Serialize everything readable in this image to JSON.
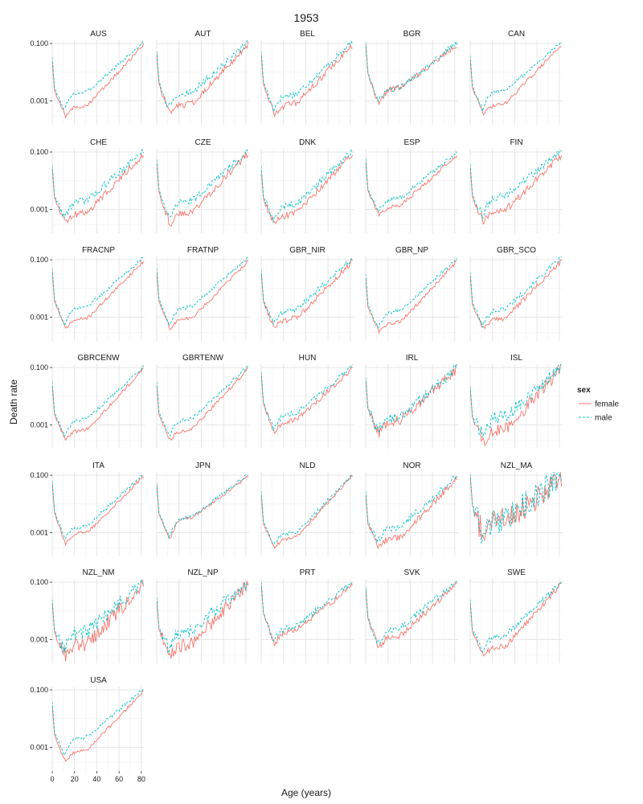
{
  "chart_data": {
    "type": "line",
    "title": "1953",
    "xlabel": "Age (years)",
    "ylabel": "Death rate",
    "y_scale": "log10",
    "xlim": [
      0,
      83
    ],
    "ylim": [
      0.00015,
      0.13
    ],
    "x_ticks": [
      0,
      20,
      40,
      60,
      80
    ],
    "y_ticks": [
      0.001,
      0.1
    ],
    "y_tick_labels": [
      "0.001",
      "0.100"
    ],
    "grid": true,
    "legend": {
      "title": "sex",
      "placement": "right",
      "entries": [
        {
          "label": "female",
          "color": "#F8766D",
          "dash": "solid"
        },
        {
          "label": "male",
          "color": "#00BFC4",
          "dash": "dashed"
        }
      ]
    },
    "series_names": [
      "female",
      "male"
    ],
    "panels": [
      {
        "label": "AUS",
        "female": {
          "d0": 0.025,
          "dmin": 0.0003,
          "amin": 12,
          "h20": 0.0006,
          "d82": 0.09
        },
        "male": {
          "d0": 0.033,
          "dmin": 0.0005,
          "amin": 10,
          "h20": 0.0018,
          "d82": 0.11
        }
      },
      {
        "label": "AUT",
        "female": {
          "d0": 0.045,
          "dmin": 0.0004,
          "amin": 11,
          "h20": 0.0007,
          "d82": 0.09
        },
        "male": {
          "d0": 0.055,
          "dmin": 0.0006,
          "amin": 10,
          "h20": 0.0017,
          "d82": 0.11
        }
      },
      {
        "label": "BEL",
        "female": {
          "d0": 0.042,
          "dmin": 0.00035,
          "amin": 12,
          "h20": 0.0007,
          "d82": 0.09
        },
        "male": {
          "d0": 0.052,
          "dmin": 0.0005,
          "amin": 11,
          "h20": 0.0015,
          "d82": 0.11
        }
      },
      {
        "label": "BGR",
        "female": {
          "d0": 0.1,
          "dmin": 0.0007,
          "amin": 12,
          "h20": 0.0025,
          "d82": 0.09
        },
        "male": {
          "d0": 0.11,
          "dmin": 0.0009,
          "amin": 11,
          "h20": 0.0025,
          "d82": 0.11
        }
      },
      {
        "label": "CAN",
        "female": {
          "d0": 0.03,
          "dmin": 0.00035,
          "amin": 12,
          "h20": 0.0007,
          "d82": 0.09
        },
        "male": {
          "d0": 0.038,
          "dmin": 0.0005,
          "amin": 11,
          "h20": 0.002,
          "d82": 0.11
        }
      },
      {
        "label": "CHE",
        "female": {
          "d0": 0.028,
          "dmin": 0.00035,
          "amin": 12,
          "h20": 0.0007,
          "d82": 0.09
        },
        "male": {
          "d0": 0.035,
          "dmin": 0.0005,
          "amin": 11,
          "h20": 0.0018,
          "d82": 0.11
        }
      },
      {
        "label": "CZE",
        "female": {
          "d0": 0.045,
          "dmin": 0.0003,
          "amin": 12,
          "h20": 0.0007,
          "d82": 0.09
        },
        "male": {
          "d0": 0.055,
          "dmin": 0.0005,
          "amin": 11,
          "h20": 0.0017,
          "d82": 0.11
        }
      },
      {
        "label": "DNK",
        "female": {
          "d0": 0.025,
          "dmin": 0.0003,
          "amin": 12,
          "h20": 0.0006,
          "d82": 0.09
        },
        "male": {
          "d0": 0.032,
          "dmin": 0.0004,
          "amin": 11,
          "h20": 0.0013,
          "d82": 0.11
        }
      },
      {
        "label": "ESP",
        "female": {
          "d0": 0.05,
          "dmin": 0.0006,
          "amin": 12,
          "h20": 0.0012,
          "d82": 0.08
        },
        "male": {
          "d0": 0.06,
          "dmin": 0.0008,
          "amin": 11,
          "h20": 0.0022,
          "d82": 0.1
        }
      },
      {
        "label": "FIN",
        "female": {
          "d0": 0.03,
          "dmin": 0.0004,
          "amin": 12,
          "h20": 0.0008,
          "d82": 0.08
        },
        "male": {
          "d0": 0.038,
          "dmin": 0.0006,
          "amin": 11,
          "h20": 0.0025,
          "d82": 0.11
        }
      },
      {
        "label": "FRACNP",
        "female": {
          "d0": 0.04,
          "dmin": 0.0004,
          "amin": 12,
          "h20": 0.0008,
          "d82": 0.09
        },
        "male": {
          "d0": 0.05,
          "dmin": 0.0005,
          "amin": 11,
          "h20": 0.002,
          "d82": 0.12
        }
      },
      {
        "label": "FRATNP",
        "female": {
          "d0": 0.04,
          "dmin": 0.0004,
          "amin": 12,
          "h20": 0.0008,
          "d82": 0.09
        },
        "male": {
          "d0": 0.05,
          "dmin": 0.0005,
          "amin": 11,
          "h20": 0.002,
          "d82": 0.12
        }
      },
      {
        "label": "GBR_NIR",
        "female": {
          "d0": 0.038,
          "dmin": 0.0004,
          "amin": 12,
          "h20": 0.0008,
          "d82": 0.09
        },
        "male": {
          "d0": 0.045,
          "dmin": 0.0006,
          "amin": 11,
          "h20": 0.0016,
          "d82": 0.11
        }
      },
      {
        "label": "GBR_NP",
        "female": {
          "d0": 0.025,
          "dmin": 0.0003,
          "amin": 12,
          "h20": 0.0006,
          "d82": 0.09
        },
        "male": {
          "d0": 0.032,
          "dmin": 0.0004,
          "amin": 11,
          "h20": 0.0015,
          "d82": 0.11
        }
      },
      {
        "label": "GBR_SCO",
        "female": {
          "d0": 0.03,
          "dmin": 0.0004,
          "amin": 12,
          "h20": 0.0008,
          "d82": 0.09
        },
        "male": {
          "d0": 0.038,
          "dmin": 0.0005,
          "amin": 11,
          "h20": 0.0017,
          "d82": 0.12
        }
      },
      {
        "label": "GBRCENW",
        "female": {
          "d0": 0.025,
          "dmin": 0.0003,
          "amin": 12,
          "h20": 0.0006,
          "d82": 0.09
        },
        "male": {
          "d0": 0.032,
          "dmin": 0.0004,
          "amin": 11,
          "h20": 0.0014,
          "d82": 0.11
        }
      },
      {
        "label": "GBRTENW",
        "female": {
          "d0": 0.025,
          "dmin": 0.0003,
          "amin": 12,
          "h20": 0.0006,
          "d82": 0.09
        },
        "male": {
          "d0": 0.032,
          "dmin": 0.0004,
          "amin": 11,
          "h20": 0.0014,
          "d82": 0.11
        }
      },
      {
        "label": "HUN",
        "female": {
          "d0": 0.06,
          "dmin": 0.0005,
          "amin": 12,
          "h20": 0.0013,
          "d82": 0.09
        },
        "male": {
          "d0": 0.07,
          "dmin": 0.0007,
          "amin": 11,
          "h20": 0.0022,
          "d82": 0.11
        }
      },
      {
        "label": "IRL",
        "female": {
          "d0": 0.04,
          "dmin": 0.0005,
          "amin": 12,
          "h20": 0.0013,
          "d82": 0.09
        },
        "male": {
          "d0": 0.045,
          "dmin": 0.0006,
          "amin": 11,
          "h20": 0.0017,
          "d82": 0.1
        }
      },
      {
        "label": "ISL",
        "female": {
          "d0": 0.02,
          "dmin": 0.0002,
          "amin": 14,
          "h20": 0.0006,
          "d82": 0.09
        },
        "male": {
          "d0": 0.022,
          "dmin": 0.0004,
          "amin": 12,
          "h20": 0.0017,
          "d82": 0.1
        }
      },
      {
        "label": "ITA",
        "female": {
          "d0": 0.055,
          "dmin": 0.0004,
          "amin": 12,
          "h20": 0.0009,
          "d82": 0.09
        },
        "male": {
          "d0": 0.065,
          "dmin": 0.0006,
          "amin": 11,
          "h20": 0.0015,
          "d82": 0.11
        }
      },
      {
        "label": "JPN",
        "female": {
          "d0": 0.05,
          "dmin": 0.0006,
          "amin": 12,
          "h20": 0.0028,
          "d82": 0.09
        },
        "male": {
          "d0": 0.055,
          "dmin": 0.0007,
          "amin": 11,
          "h20": 0.003,
          "d82": 0.11
        }
      },
      {
        "label": "NLD",
        "female": {
          "d0": 0.022,
          "dmin": 0.0003,
          "amin": 12,
          "h20": 0.0006,
          "d82": 0.1
        },
        "male": {
          "d0": 0.028,
          "dmin": 0.0004,
          "amin": 11,
          "h20": 0.0009,
          "d82": 0.1
        }
      },
      {
        "label": "NOR",
        "female": {
          "d0": 0.022,
          "dmin": 0.0003,
          "amin": 12,
          "h20": 0.0006,
          "d82": 0.08
        },
        "male": {
          "d0": 0.028,
          "dmin": 0.0005,
          "amin": 11,
          "h20": 0.0014,
          "d82": 0.1
        }
      },
      {
        "label": "NZL_MA",
        "female": {
          "d0": 0.1,
          "dmin": 0.0007,
          "amin": 12,
          "h20": 0.0025,
          "d82": 0.07
        },
        "male": {
          "d0": 0.11,
          "dmin": 0.0008,
          "amin": 11,
          "h20": 0.0025,
          "d82": 0.1
        }
      },
      {
        "label": "NZL_NM",
        "female": {
          "d0": 0.02,
          "dmin": 0.0003,
          "amin": 12,
          "h20": 0.0006,
          "d82": 0.09
        },
        "male": {
          "d0": 0.025,
          "dmin": 0.0005,
          "amin": 11,
          "h20": 0.0017,
          "d82": 0.1
        }
      },
      {
        "label": "NZL_NP",
        "female": {
          "d0": 0.025,
          "dmin": 0.0003,
          "amin": 12,
          "h20": 0.0006,
          "d82": 0.09
        },
        "male": {
          "d0": 0.03,
          "dmin": 0.0005,
          "amin": 11,
          "h20": 0.0018,
          "d82": 0.1
        }
      },
      {
        "label": "PRT",
        "female": {
          "d0": 0.09,
          "dmin": 0.0007,
          "amin": 12,
          "h20": 0.0018,
          "d82": 0.08
        },
        "male": {
          "d0": 0.1,
          "dmin": 0.0009,
          "amin": 11,
          "h20": 0.0025,
          "d82": 0.1
        }
      },
      {
        "label": "SVK",
        "female": {
          "d0": 0.06,
          "dmin": 0.0005,
          "amin": 12,
          "h20": 0.0012,
          "d82": 0.09
        },
        "male": {
          "d0": 0.07,
          "dmin": 0.0007,
          "amin": 11,
          "h20": 0.0022,
          "d82": 0.11
        }
      },
      {
        "label": "SWE",
        "female": {
          "d0": 0.02,
          "dmin": 0.0003,
          "amin": 12,
          "h20": 0.0005,
          "d82": 0.09
        },
        "male": {
          "d0": 0.025,
          "dmin": 0.0004,
          "amin": 11,
          "h20": 0.0012,
          "d82": 0.1
        }
      },
      {
        "label": "USA",
        "female": {
          "d0": 0.03,
          "dmin": 0.0003,
          "amin": 12,
          "h20": 0.0007,
          "d82": 0.09
        },
        "male": {
          "d0": 0.038,
          "dmin": 0.0005,
          "amin": 11,
          "h20": 0.002,
          "d82": 0.11
        }
      }
    ]
  }
}
